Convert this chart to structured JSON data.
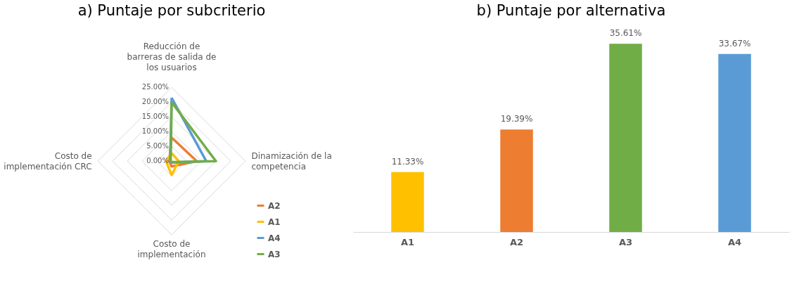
{
  "chart_data": [
    {
      "type": "radar",
      "title": "a) Puntaje por subcriterio",
      "categories": [
        "Reducción de\nbarreras de salida de\nlos usuarios",
        "Dinamización de la\ncompetencia",
        "Costo de\nimplementación",
        "Costo de\nimplementación CRC"
      ],
      "series": [
        {
          "name": "A2",
          "color": "#ed7d31",
          "values": [
            8.0,
            8.5,
            1.8,
            0.8
          ]
        },
        {
          "name": "A1",
          "color": "#ffc000",
          "values": [
            2.7,
            2.4,
            4.7,
            1.9
          ]
        },
        {
          "name": "A4",
          "color": "#5b9bd5",
          "values": [
            21.5,
            11.7,
            0.5,
            0.5
          ]
        },
        {
          "name": "A3",
          "color": "#70ad47",
          "values": [
            20.0,
            15.0,
            0.3,
            0.3
          ]
        }
      ],
      "ylim": [
        0,
        25
      ],
      "yticks": [
        {
          "value": 0,
          "label": "0.00%"
        },
        {
          "value": 5,
          "label": "5.00%"
        },
        {
          "value": 10,
          "label": "10.00%"
        },
        {
          "value": 15,
          "label": "15.00%"
        },
        {
          "value": 20,
          "label": "20.00%"
        },
        {
          "value": 25,
          "label": "25.00%"
        }
      ],
      "grid": true,
      "legend": "bottom right"
    },
    {
      "type": "bar",
      "title": "b) Puntaje por alternativa",
      "categories": [
        "A1",
        "A2",
        "A3",
        "A4"
      ],
      "values": [
        11.33,
        19.39,
        35.61,
        33.67
      ],
      "colors": [
        "#ffc000",
        "#ed7d31",
        "#70ad47",
        "#5b9bd5"
      ],
      "value_labels": [
        "11.33%",
        "19.39%",
        "35.61%",
        "33.67%"
      ]
    }
  ]
}
